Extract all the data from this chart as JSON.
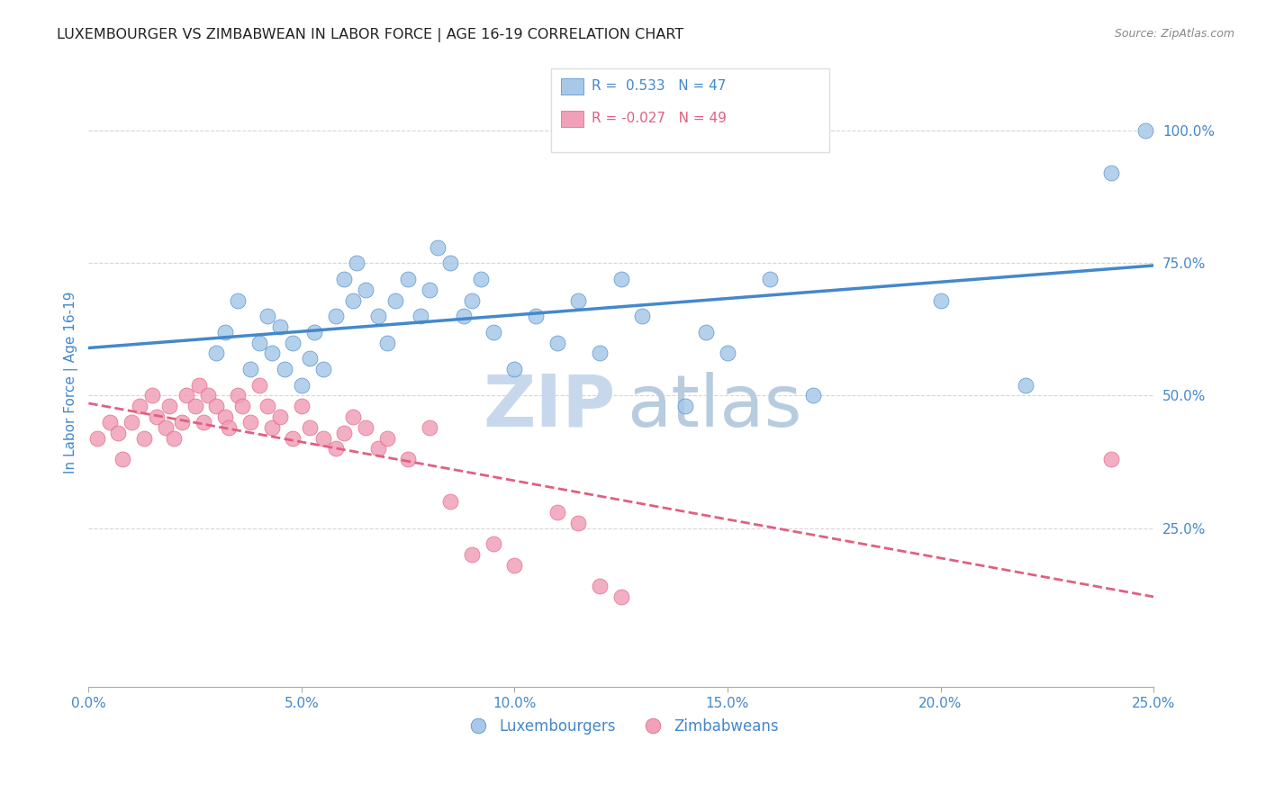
{
  "title": "LUXEMBOURGER VS ZIMBABWEAN IN LABOR FORCE | AGE 16-19 CORRELATION CHART",
  "source": "Source: ZipAtlas.com",
  "ylabel": "In Labor Force | Age 16-19",
  "xlim": [
    0.0,
    0.25
  ],
  "ylim": [
    -0.05,
    1.1
  ],
  "ytick_right_labels": [
    "25.0%",
    "50.0%",
    "75.0%",
    "100.0%"
  ],
  "ytick_right_values": [
    0.25,
    0.5,
    0.75,
    1.0
  ],
  "xtick_labels": [
    "0.0%",
    "5.0%",
    "10.0%",
    "15.0%",
    "20.0%",
    "25.0%"
  ],
  "xtick_values": [
    0.0,
    0.05,
    0.1,
    0.15,
    0.2,
    0.25
  ],
  "blue_color": "#a8c8e8",
  "pink_color": "#f0a0b8",
  "blue_line_color": "#4488cc",
  "pink_line_color": "#e06080",
  "title_color": "#222222",
  "tick_label_color": "#4488cc",
  "right_tick_color": "#4488cc",
  "legend_label_blue": "Luxembourgers",
  "legend_label_pink": "Zimbabweans",
  "blue_scatter_x": [
    0.03,
    0.032,
    0.035,
    0.038,
    0.04,
    0.042,
    0.043,
    0.045,
    0.046,
    0.048,
    0.05,
    0.052,
    0.053,
    0.055,
    0.058,
    0.06,
    0.062,
    0.063,
    0.065,
    0.068,
    0.07,
    0.072,
    0.075,
    0.078,
    0.08,
    0.082,
    0.085,
    0.088,
    0.09,
    0.092,
    0.095,
    0.1,
    0.105,
    0.11,
    0.115,
    0.12,
    0.125,
    0.13,
    0.14,
    0.145,
    0.15,
    0.16,
    0.17,
    0.2,
    0.22,
    0.24,
    0.248
  ],
  "blue_scatter_y": [
    0.58,
    0.62,
    0.68,
    0.55,
    0.6,
    0.65,
    0.58,
    0.63,
    0.55,
    0.6,
    0.52,
    0.57,
    0.62,
    0.55,
    0.65,
    0.72,
    0.68,
    0.75,
    0.7,
    0.65,
    0.6,
    0.68,
    0.72,
    0.65,
    0.7,
    0.78,
    0.75,
    0.65,
    0.68,
    0.72,
    0.62,
    0.55,
    0.65,
    0.6,
    0.68,
    0.58,
    0.72,
    0.65,
    0.48,
    0.62,
    0.58,
    0.72,
    0.5,
    0.68,
    0.52,
    0.92,
    1.0
  ],
  "pink_scatter_x": [
    0.002,
    0.005,
    0.007,
    0.008,
    0.01,
    0.012,
    0.013,
    0.015,
    0.016,
    0.018,
    0.019,
    0.02,
    0.022,
    0.023,
    0.025,
    0.026,
    0.027,
    0.028,
    0.03,
    0.032,
    0.033,
    0.035,
    0.036,
    0.038,
    0.04,
    0.042,
    0.043,
    0.045,
    0.048,
    0.05,
    0.052,
    0.055,
    0.058,
    0.06,
    0.062,
    0.065,
    0.068,
    0.07,
    0.075,
    0.08,
    0.085,
    0.09,
    0.095,
    0.1,
    0.11,
    0.115,
    0.12,
    0.125,
    0.24
  ],
  "pink_scatter_y": [
    0.42,
    0.45,
    0.43,
    0.38,
    0.45,
    0.48,
    0.42,
    0.5,
    0.46,
    0.44,
    0.48,
    0.42,
    0.45,
    0.5,
    0.48,
    0.52,
    0.45,
    0.5,
    0.48,
    0.46,
    0.44,
    0.5,
    0.48,
    0.45,
    0.52,
    0.48,
    0.44,
    0.46,
    0.42,
    0.48,
    0.44,
    0.42,
    0.4,
    0.43,
    0.46,
    0.44,
    0.4,
    0.42,
    0.38,
    0.44,
    0.3,
    0.2,
    0.22,
    0.18,
    0.28,
    0.26,
    0.14,
    0.12,
    0.38
  ],
  "grid_color": "#cccccc",
  "grid_alpha": 0.8,
  "watermark_zip_color": "#c8d8ec",
  "watermark_atlas_color": "#b8cce0"
}
